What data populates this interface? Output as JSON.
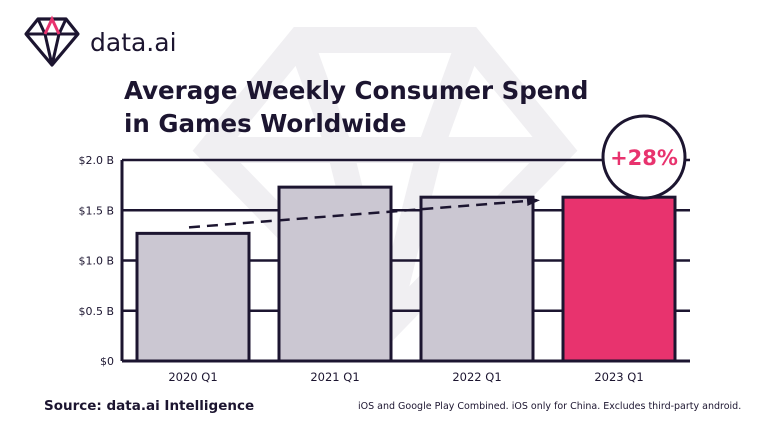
{
  "brand": {
    "name": "data.ai",
    "logo_icon": "diamond-icon"
  },
  "title_line1": "Average Weekly Consumer Spend",
  "title_line2": "in Games Worldwide",
  "badge": "+28%",
  "footer": {
    "source": "Source: data.ai Intelligence",
    "note": "iOS and Google Play Combined. iOS only for China. Excludes third-party android."
  },
  "chart_data": {
    "type": "bar",
    "title": "Average Weekly Consumer Spend in Games Worldwide",
    "categories": [
      "2020 Q1",
      "2021 Q1",
      "2022 Q1",
      "2023 Q1"
    ],
    "values": [
      1.27,
      1.73,
      1.63,
      1.63
    ],
    "ylim": [
      0,
      2.0
    ],
    "yticks": [
      0,
      0.5,
      1.0,
      1.5,
      2.0
    ],
    "ytick_labels": [
      "$0",
      "$0.5 B",
      "$1.0 B",
      "$1.5 B",
      "$2.0 B"
    ],
    "grid": true,
    "colors": {
      "default": "#cbc7d2",
      "highlight": "#e8336e",
      "outline": "#1c1530"
    },
    "highlight_index": 3,
    "trend": {
      "from": 1.33,
      "to": 1.6,
      "style": "dashed-arrow"
    },
    "annotation": "+28%"
  }
}
